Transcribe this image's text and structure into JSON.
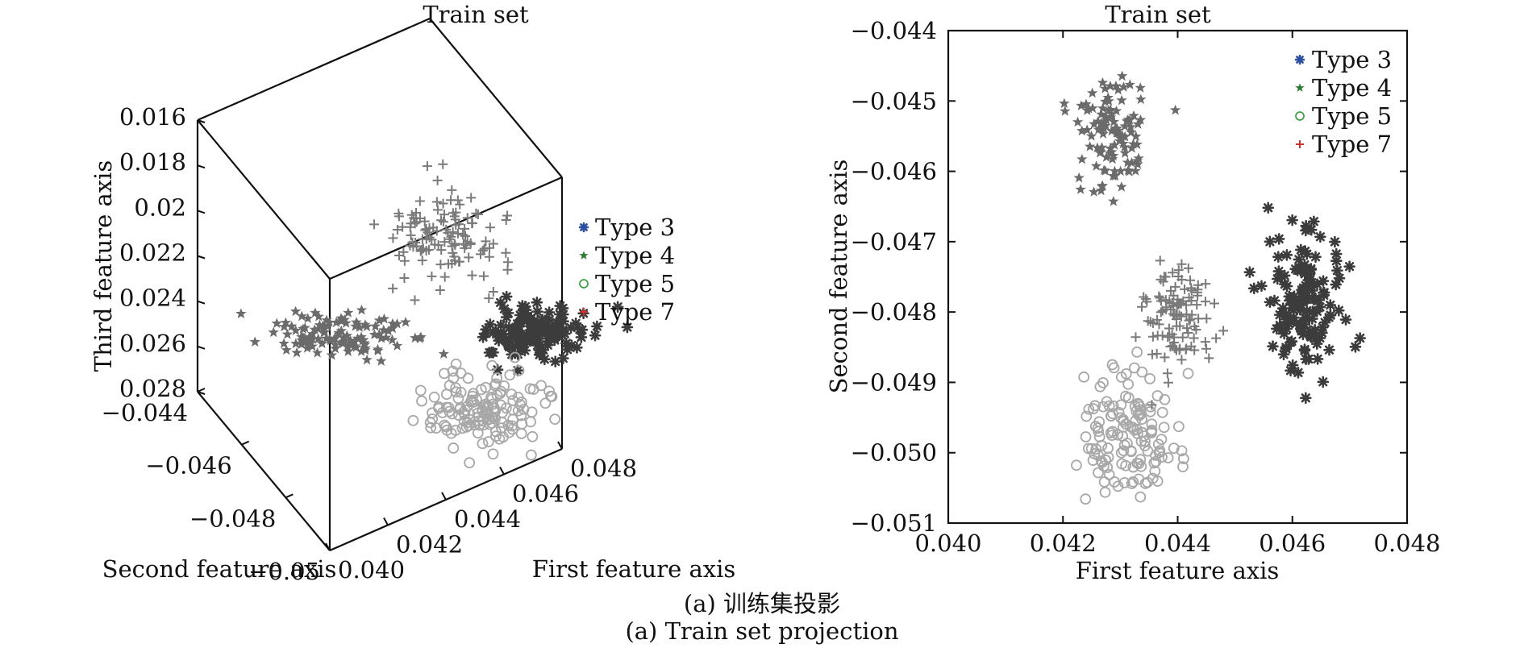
{
  "caption": {
    "line_cn": "(a) 训练集投影",
    "line_en": "(a) Train set projection"
  },
  "legend": [
    {
      "label": "Type 3",
      "marker": "asterisk",
      "color": "#2b4f9e"
    },
    {
      "label": "Type 4",
      "marker": "star",
      "color": "#2e7d32"
    },
    {
      "label": "Type 5",
      "marker": "circle",
      "color": "#43a047"
    },
    {
      "label": "Type 7",
      "marker": "plus",
      "color": "#d32f2f"
    }
  ],
  "chart_data": [
    {
      "type": "scatter",
      "dimension": "3d",
      "title": "Train set",
      "xlabel": "First feature axis",
      "ylabel": "Second feature axis",
      "zlabel": "Third feature axis",
      "xlim": [
        0.04,
        0.048
      ],
      "ylim": [
        -0.05,
        -0.044
      ],
      "zlim": [
        0.016,
        0.028
      ],
      "z_axis_reversed": true,
      "xticks": [
        "0.040",
        "0.042",
        "0.044",
        "0.046",
        "0.048"
      ],
      "yticks": [
        "−0.044",
        "−0.046",
        "−0.048",
        "−0.05"
      ],
      "zticks": [
        "0.016",
        "0.018",
        "0.02",
        "0.022",
        "0.024",
        "0.026",
        "0.028"
      ],
      "legend_position": "right",
      "series": [
        {
          "name": "Type 3",
          "marker": "asterisk",
          "render_color": "#3c3c3c",
          "cluster": {
            "x": 0.046,
            "y": -0.0478,
            "z": 0.0245,
            "count": 140
          }
        },
        {
          "name": "Type 4",
          "marker": "star",
          "render_color": "#6b6b6b",
          "cluster": {
            "x": 0.0426,
            "y": -0.0455,
            "z": 0.025,
            "count": 120
          }
        },
        {
          "name": "Type 5",
          "marker": "circle",
          "render_color": "#a8a8a8",
          "cluster": {
            "x": 0.0431,
            "y": -0.0498,
            "z": 0.0265,
            "count": 140
          }
        },
        {
          "name": "Type 7",
          "marker": "plus",
          "render_color": "#7a7a7a",
          "cluster": {
            "x": 0.0438,
            "y": -0.048,
            "z": 0.02,
            "count": 120
          }
        }
      ]
    },
    {
      "type": "scatter",
      "dimension": "2d",
      "title": "Train set",
      "xlabel": "First feature axis",
      "ylabel": "Second feature axis",
      "xlim": [
        0.04,
        0.048
      ],
      "ylim": [
        -0.051,
        -0.044
      ],
      "xticks": [
        "0.040",
        "0.042",
        "0.044",
        "0.046",
        "0.048"
      ],
      "yticks": [
        "−0.044",
        "−0.045",
        "−0.046",
        "−0.047",
        "−0.048",
        "−0.049",
        "−0.050",
        "−0.051"
      ],
      "legend_position": "top-right",
      "series": [
        {
          "name": "Type 3",
          "marker": "asterisk",
          "render_color": "#3c3c3c",
          "cluster": {
            "cx": 0.0462,
            "cy": -0.0479,
            "sx": 0.00035,
            "sy": 0.00045,
            "count": 140
          }
        },
        {
          "name": "Type 4",
          "marker": "star",
          "render_color": "#6b6b6b",
          "cluster": {
            "cx": 0.0428,
            "cy": -0.0455,
            "sx": 0.00035,
            "sy": 0.0004,
            "count": 110
          }
        },
        {
          "name": "Type 5",
          "marker": "circle",
          "render_color": "#a8a8a8",
          "cluster": {
            "cx": 0.0432,
            "cy": -0.0498,
            "sx": 0.0004,
            "sy": 0.00048,
            "count": 140
          }
        },
        {
          "name": "Type 7",
          "marker": "plus",
          "render_color": "#7a7a7a",
          "cluster": {
            "cx": 0.044,
            "cy": -0.048,
            "sx": 0.0003,
            "sy": 0.0004,
            "count": 110
          }
        }
      ]
    }
  ]
}
